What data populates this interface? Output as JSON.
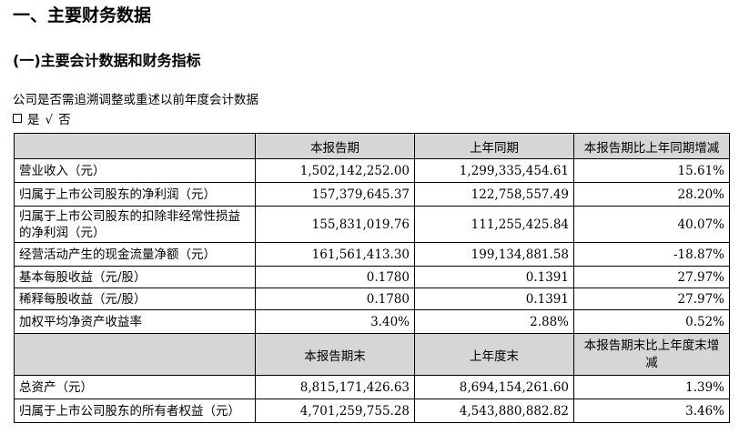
{
  "heading1": "一、主要财务数据",
  "heading2": "(一)主要会计数据和财务指标",
  "intro": "公司是否需追溯调整或重述以前年度会计数据",
  "choice": {
    "yes_label": "是",
    "check_mark": "√",
    "no_label": "否"
  },
  "table": {
    "header1": [
      "",
      "本报告期",
      "上年同期",
      "本报告期比上年同期增减"
    ],
    "rows1": [
      [
        "营业收入（元）",
        "1,502,142,252.00",
        "1,299,335,454.61",
        "15.61%"
      ],
      [
        "归属于上市公司股东的净利润（元）",
        "157,379,645.37",
        "122,758,557.49",
        "28.20%"
      ],
      [
        "归属于上市公司股东的扣除非经常性损益的净利润（元）",
        "155,831,019.76",
        "111,255,425.84",
        "40.07%"
      ],
      [
        "经营活动产生的现金流量净额（元）",
        "161,561,413.30",
        "199,134,881.58",
        "-18.87%"
      ],
      [
        "基本每股收益（元/股）",
        "0.1780",
        "0.1391",
        "27.97%"
      ],
      [
        "稀释每股收益（元/股）",
        "0.1780",
        "0.1391",
        "27.97%"
      ],
      [
        "加权平均净资产收益率",
        "3.40%",
        "2.88%",
        "0.52%"
      ]
    ],
    "header2": [
      "",
      "本报告期末",
      "上年度末",
      "本报告期末比上年度末增减"
    ],
    "rows2": [
      [
        "总资产（元）",
        "8,815,171,426.63",
        "8,694,154,261.60",
        "1.39%"
      ],
      [
        "归属于上市公司股东的所有者权益（元）",
        "4,701,259,755.28",
        "4,543,880,882.82",
        "3.46%"
      ]
    ]
  }
}
